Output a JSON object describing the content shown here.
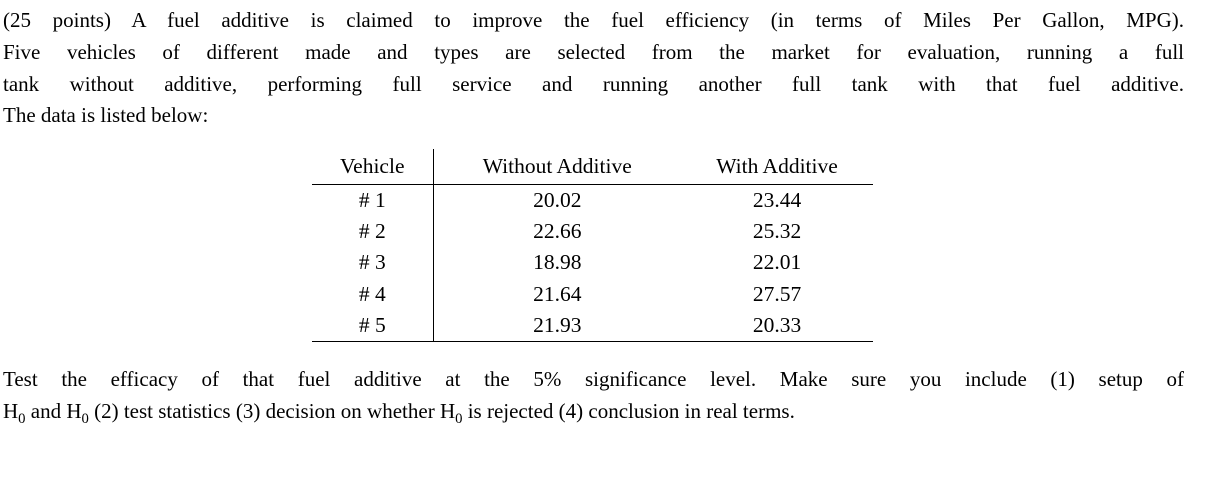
{
  "page": {
    "background_color": "#ffffff",
    "text_color": "#000000"
  },
  "problem": {
    "intro_lines": [
      "(25 points) A fuel additive is claimed to improve the fuel efficiency (in terms of Miles Per Gallon, MPG).",
      "Five vehicles of different made and types are selected from the market for evaluation, running a full",
      "tank without additive, performing full service and running another full tank with that fuel additive.",
      "The data is listed below:"
    ],
    "closing": {
      "line1": "Test the efficacy of that fuel additive at the 5% significance level. Make sure you include (1) setup of",
      "line2": {
        "seg1": "H",
        "sub1": "0",
        "seg2": " and H",
        "sub2": "0",
        "seg3": " (2) test statistics (3) decision on whether H",
        "sub3": "0",
        "seg4": " is rejected (4) conclusion in real terms."
      }
    }
  },
  "table": {
    "columns": [
      "Vehicle",
      "Without Additive",
      "With Additive"
    ],
    "rows": [
      {
        "vehicle": "# 1",
        "without_additive": "20.02",
        "with_additive": "23.44"
      },
      {
        "vehicle": "# 2",
        "without_additive": "22.66",
        "with_additive": "25.32"
      },
      {
        "vehicle": "# 3",
        "without_additive": "18.98",
        "with_additive": "22.01"
      },
      {
        "vehicle": "# 4",
        "without_additive": "21.64",
        "with_additive": "27.57"
      },
      {
        "vehicle": "# 5",
        "without_additive": "21.93",
        "with_additive": "20.33"
      }
    ]
  }
}
